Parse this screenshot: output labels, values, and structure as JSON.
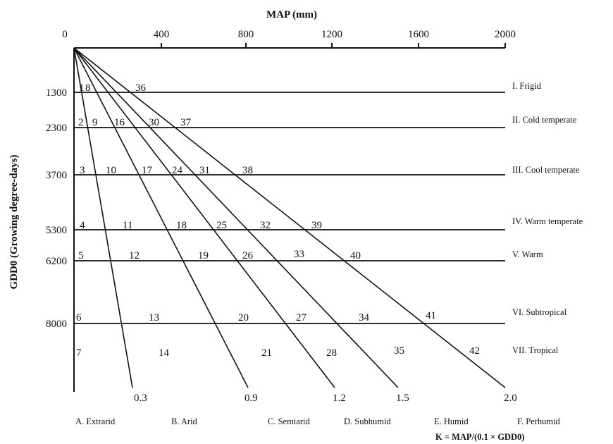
{
  "diagram": {
    "x_axis_title": "MAP (mm)",
    "y_axis_title": "GDD0 (Growing degree-days)",
    "formula": "K = MAP/(0.1 × GDD0)",
    "map_ticks": [
      "0",
      "400",
      "800",
      "1200",
      "1600",
      "2000"
    ],
    "thermal_belts": [
      {
        "gdd": "1300",
        "name": "I. Frigid",
        "cells": [
          "1",
          "8",
          "36"
        ]
      },
      {
        "gdd": "2300",
        "name": "II. Cold temperate",
        "cells": [
          "2",
          "9",
          "16",
          "30",
          "37"
        ]
      },
      {
        "gdd": "3700",
        "name": "III. Cool temperate",
        "cells": [
          "3",
          "10",
          "17",
          "24",
          "31",
          "38"
        ]
      },
      {
        "gdd": "5300",
        "name": "IV. Warm temperate",
        "cells": [
          "4",
          "11",
          "18",
          "25",
          "32",
          "39"
        ]
      },
      {
        "gdd": "6200",
        "name": "V. Warm",
        "cells": [
          "5",
          "12",
          "19",
          "26",
          "33",
          "40"
        ]
      },
      {
        "gdd": "8000",
        "name": "VI. Subtropical",
        "cells": [
          "6",
          "13",
          "20",
          "27",
          "34",
          "41"
        ]
      },
      {
        "gdd": "",
        "name": "VII. Tropical",
        "cells": [
          "7",
          "14",
          "21",
          "28",
          "35",
          "42"
        ]
      }
    ],
    "k_values": [
      "0.3",
      "0.9",
      "1.2",
      "1.5",
      "2.0"
    ],
    "moisture_classes": [
      "A. Extrarid",
      "B. Arid",
      "C. Semiarid",
      "D. Subhumid",
      "E. Humid",
      "F. Perhumid"
    ]
  }
}
